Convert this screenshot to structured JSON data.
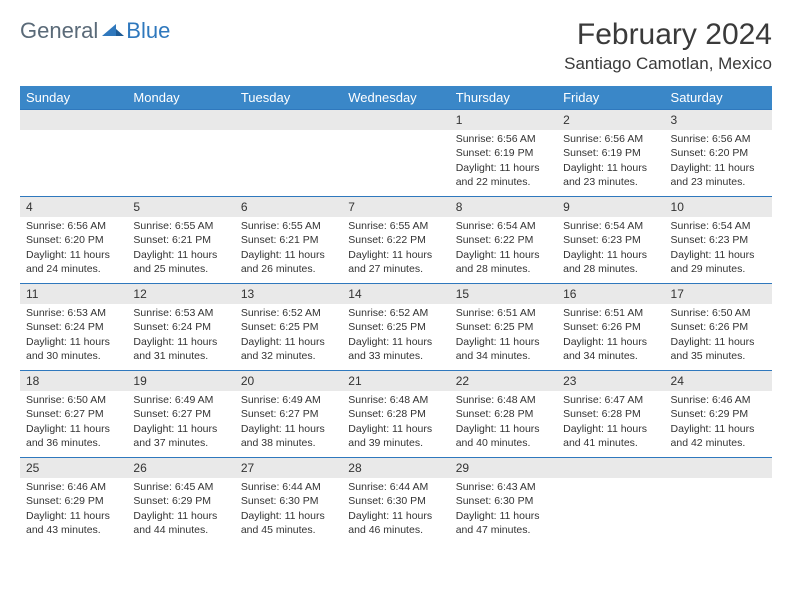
{
  "logo": {
    "text1": "General",
    "text2": "Blue"
  },
  "title": "February 2024",
  "location": "Santiago Camotlan, Mexico",
  "colors": {
    "header_bg": "#3a87c8",
    "week_border": "#2f78bd",
    "daynum_bg": "#e9e9e9",
    "logo_gray": "#5a6a78",
    "logo_blue": "#2f78bd",
    "text": "#333333",
    "bg": "#ffffff"
  },
  "typography": {
    "title_fontsize": 30,
    "location_fontsize": 17,
    "weekday_fontsize": 13,
    "daynum_fontsize": 12,
    "body_fontsize": 10.5
  },
  "weekdays": [
    "Sunday",
    "Monday",
    "Tuesday",
    "Wednesday",
    "Thursday",
    "Friday",
    "Saturday"
  ],
  "weeks": [
    [
      {
        "n": "",
        "sr": "",
        "ss": "",
        "dl": ""
      },
      {
        "n": "",
        "sr": "",
        "ss": "",
        "dl": ""
      },
      {
        "n": "",
        "sr": "",
        "ss": "",
        "dl": ""
      },
      {
        "n": "",
        "sr": "",
        "ss": "",
        "dl": ""
      },
      {
        "n": "1",
        "sr": "Sunrise: 6:56 AM",
        "ss": "Sunset: 6:19 PM",
        "dl": "Daylight: 11 hours and 22 minutes."
      },
      {
        "n": "2",
        "sr": "Sunrise: 6:56 AM",
        "ss": "Sunset: 6:19 PM",
        "dl": "Daylight: 11 hours and 23 minutes."
      },
      {
        "n": "3",
        "sr": "Sunrise: 6:56 AM",
        "ss": "Sunset: 6:20 PM",
        "dl": "Daylight: 11 hours and 23 minutes."
      }
    ],
    [
      {
        "n": "4",
        "sr": "Sunrise: 6:56 AM",
        "ss": "Sunset: 6:20 PM",
        "dl": "Daylight: 11 hours and 24 minutes."
      },
      {
        "n": "5",
        "sr": "Sunrise: 6:55 AM",
        "ss": "Sunset: 6:21 PM",
        "dl": "Daylight: 11 hours and 25 minutes."
      },
      {
        "n": "6",
        "sr": "Sunrise: 6:55 AM",
        "ss": "Sunset: 6:21 PM",
        "dl": "Daylight: 11 hours and 26 minutes."
      },
      {
        "n": "7",
        "sr": "Sunrise: 6:55 AM",
        "ss": "Sunset: 6:22 PM",
        "dl": "Daylight: 11 hours and 27 minutes."
      },
      {
        "n": "8",
        "sr": "Sunrise: 6:54 AM",
        "ss": "Sunset: 6:22 PM",
        "dl": "Daylight: 11 hours and 28 minutes."
      },
      {
        "n": "9",
        "sr": "Sunrise: 6:54 AM",
        "ss": "Sunset: 6:23 PM",
        "dl": "Daylight: 11 hours and 28 minutes."
      },
      {
        "n": "10",
        "sr": "Sunrise: 6:54 AM",
        "ss": "Sunset: 6:23 PM",
        "dl": "Daylight: 11 hours and 29 minutes."
      }
    ],
    [
      {
        "n": "11",
        "sr": "Sunrise: 6:53 AM",
        "ss": "Sunset: 6:24 PM",
        "dl": "Daylight: 11 hours and 30 minutes."
      },
      {
        "n": "12",
        "sr": "Sunrise: 6:53 AM",
        "ss": "Sunset: 6:24 PM",
        "dl": "Daylight: 11 hours and 31 minutes."
      },
      {
        "n": "13",
        "sr": "Sunrise: 6:52 AM",
        "ss": "Sunset: 6:25 PM",
        "dl": "Daylight: 11 hours and 32 minutes."
      },
      {
        "n": "14",
        "sr": "Sunrise: 6:52 AM",
        "ss": "Sunset: 6:25 PM",
        "dl": "Daylight: 11 hours and 33 minutes."
      },
      {
        "n": "15",
        "sr": "Sunrise: 6:51 AM",
        "ss": "Sunset: 6:25 PM",
        "dl": "Daylight: 11 hours and 34 minutes."
      },
      {
        "n": "16",
        "sr": "Sunrise: 6:51 AM",
        "ss": "Sunset: 6:26 PM",
        "dl": "Daylight: 11 hours and 34 minutes."
      },
      {
        "n": "17",
        "sr": "Sunrise: 6:50 AM",
        "ss": "Sunset: 6:26 PM",
        "dl": "Daylight: 11 hours and 35 minutes."
      }
    ],
    [
      {
        "n": "18",
        "sr": "Sunrise: 6:50 AM",
        "ss": "Sunset: 6:27 PM",
        "dl": "Daylight: 11 hours and 36 minutes."
      },
      {
        "n": "19",
        "sr": "Sunrise: 6:49 AM",
        "ss": "Sunset: 6:27 PM",
        "dl": "Daylight: 11 hours and 37 minutes."
      },
      {
        "n": "20",
        "sr": "Sunrise: 6:49 AM",
        "ss": "Sunset: 6:27 PM",
        "dl": "Daylight: 11 hours and 38 minutes."
      },
      {
        "n": "21",
        "sr": "Sunrise: 6:48 AM",
        "ss": "Sunset: 6:28 PM",
        "dl": "Daylight: 11 hours and 39 minutes."
      },
      {
        "n": "22",
        "sr": "Sunrise: 6:48 AM",
        "ss": "Sunset: 6:28 PM",
        "dl": "Daylight: 11 hours and 40 minutes."
      },
      {
        "n": "23",
        "sr": "Sunrise: 6:47 AM",
        "ss": "Sunset: 6:28 PM",
        "dl": "Daylight: 11 hours and 41 minutes."
      },
      {
        "n": "24",
        "sr": "Sunrise: 6:46 AM",
        "ss": "Sunset: 6:29 PM",
        "dl": "Daylight: 11 hours and 42 minutes."
      }
    ],
    [
      {
        "n": "25",
        "sr": "Sunrise: 6:46 AM",
        "ss": "Sunset: 6:29 PM",
        "dl": "Daylight: 11 hours and 43 minutes."
      },
      {
        "n": "26",
        "sr": "Sunrise: 6:45 AM",
        "ss": "Sunset: 6:29 PM",
        "dl": "Daylight: 11 hours and 44 minutes."
      },
      {
        "n": "27",
        "sr": "Sunrise: 6:44 AM",
        "ss": "Sunset: 6:30 PM",
        "dl": "Daylight: 11 hours and 45 minutes."
      },
      {
        "n": "28",
        "sr": "Sunrise: 6:44 AM",
        "ss": "Sunset: 6:30 PM",
        "dl": "Daylight: 11 hours and 46 minutes."
      },
      {
        "n": "29",
        "sr": "Sunrise: 6:43 AM",
        "ss": "Sunset: 6:30 PM",
        "dl": "Daylight: 11 hours and 47 minutes."
      },
      {
        "n": "",
        "sr": "",
        "ss": "",
        "dl": ""
      },
      {
        "n": "",
        "sr": "",
        "ss": "",
        "dl": ""
      }
    ]
  ]
}
